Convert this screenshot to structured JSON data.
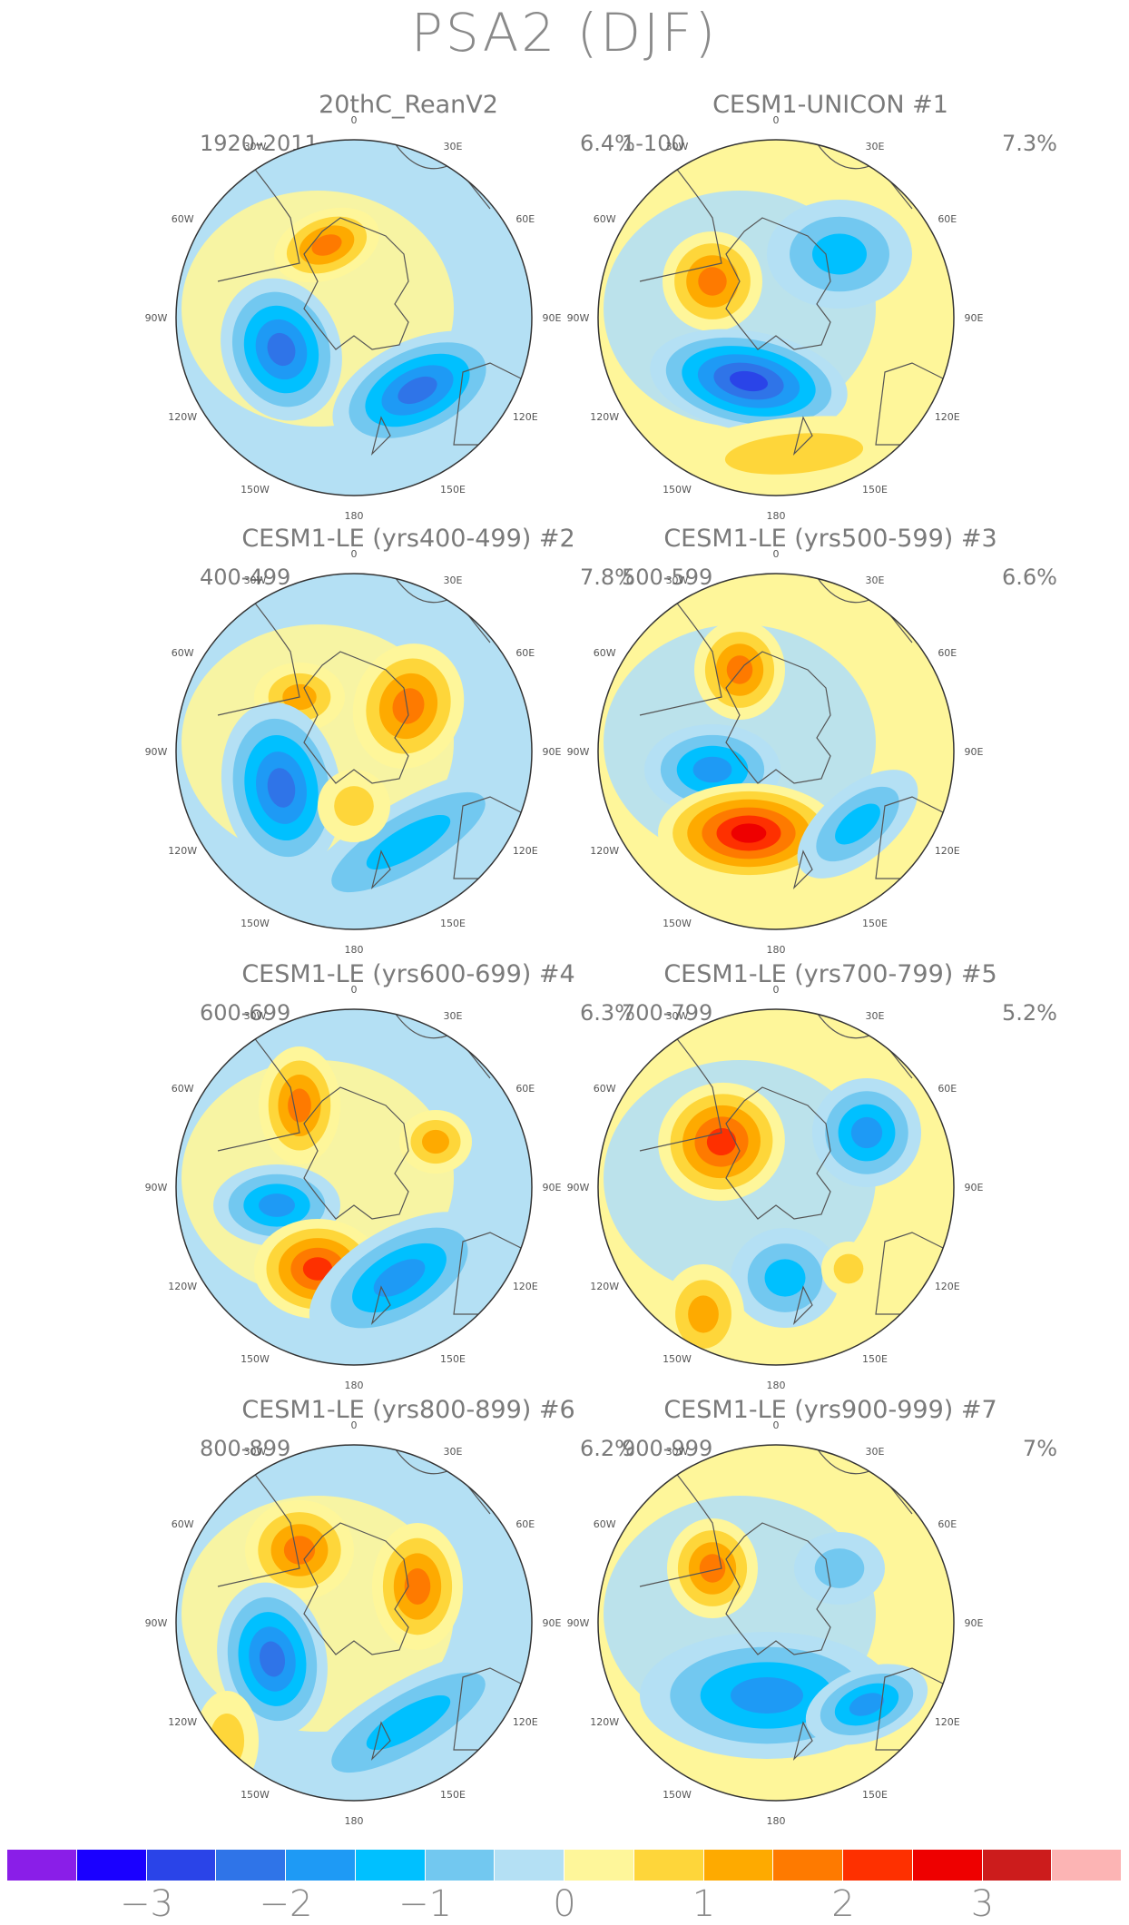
{
  "title": "PSA2 (DJF)",
  "panels": [
    {
      "title": "20thC_ReanV2",
      "period": "1920-2011",
      "percent": "6.4%",
      "variant": 0
    },
    {
      "title": "CESM1-UNICON        #1",
      "period": "1-100",
      "percent": "7.3%",
      "variant": 1
    },
    {
      "title": "CESM1-LE (yrs400-499) #2",
      "period": "400-499",
      "percent": "7.8%",
      "variant": 2
    },
    {
      "title": "CESM1-LE (yrs500-599) #3",
      "period": "500-599",
      "percent": "6.6%",
      "variant": 3
    },
    {
      "title": "CESM1-LE (yrs600-699) #4",
      "period": "600-699",
      "percent": "6.3%",
      "variant": 4
    },
    {
      "title": "CESM1-LE (yrs700-799) #5",
      "period": "700-799",
      "percent": "5.2%",
      "variant": 5
    },
    {
      "title": "CESM1-LE (yrs800-899) #6",
      "period": "800-899",
      "percent": "6.2%",
      "variant": 6
    },
    {
      "title": "CESM1-LE (yrs900-999) #7",
      "period": "900-999",
      "percent": "7%",
      "variant": 7
    }
  ],
  "longitude_labels": [
    "0",
    "30E",
    "60E",
    "90E",
    "120E",
    "150E",
    "180",
    "150W",
    "120W",
    "90W",
    "60W",
    "30W"
  ],
  "colorbar": {
    "colors": [
      "#8a1ee8",
      "#1a00ff",
      "#2a44e8",
      "#2f74e8",
      "#1e9af5",
      "#00c0ff",
      "#72c8f0",
      "#b4e0f4",
      "#fef69a",
      "#fed63a",
      "#feaa00",
      "#fe7a00",
      "#fe3000",
      "#ee0000",
      "#cc1c1c",
      "#fcb4b4"
    ],
    "tick_labels": [
      "−3",
      "−2",
      "−1",
      "0",
      "1",
      "2",
      "3"
    ]
  }
}
